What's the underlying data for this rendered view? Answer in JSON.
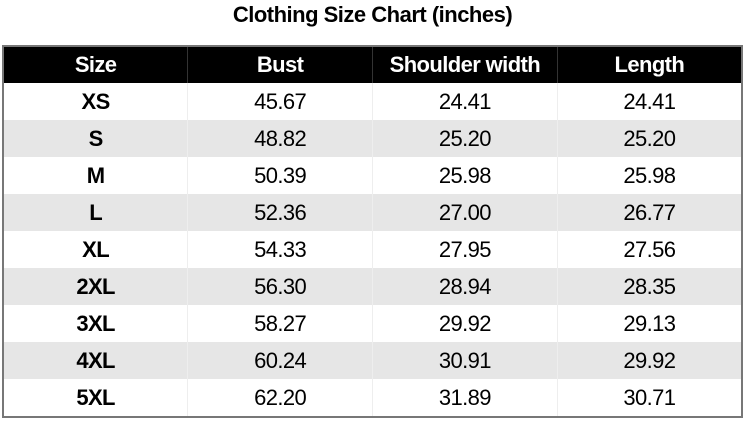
{
  "title": "Clothing Size Chart (inches)",
  "columns": [
    "Size",
    "Bust",
    "Shoulder width",
    "Length"
  ],
  "rows": [
    [
      "XS",
      "45.67",
      "24.41",
      "24.41"
    ],
    [
      "S",
      "48.82",
      "25.20",
      "25.20"
    ],
    [
      "M",
      "50.39",
      "25.98",
      "25.98"
    ],
    [
      "L",
      "52.36",
      "27.00",
      "26.77"
    ],
    [
      "XL",
      "54.33",
      "27.95",
      "27.56"
    ],
    [
      "2XL",
      "56.30",
      "28.94",
      "28.35"
    ],
    [
      "3XL",
      "58.27",
      "29.92",
      "29.13"
    ],
    [
      "4XL",
      "60.24",
      "30.91",
      "29.92"
    ],
    [
      "5XL",
      "62.20",
      "31.89",
      "30.71"
    ]
  ],
  "colors": {
    "header_bg": "#000000",
    "header_text": "#ffffff",
    "stripe": "#e6e6e6"
  }
}
